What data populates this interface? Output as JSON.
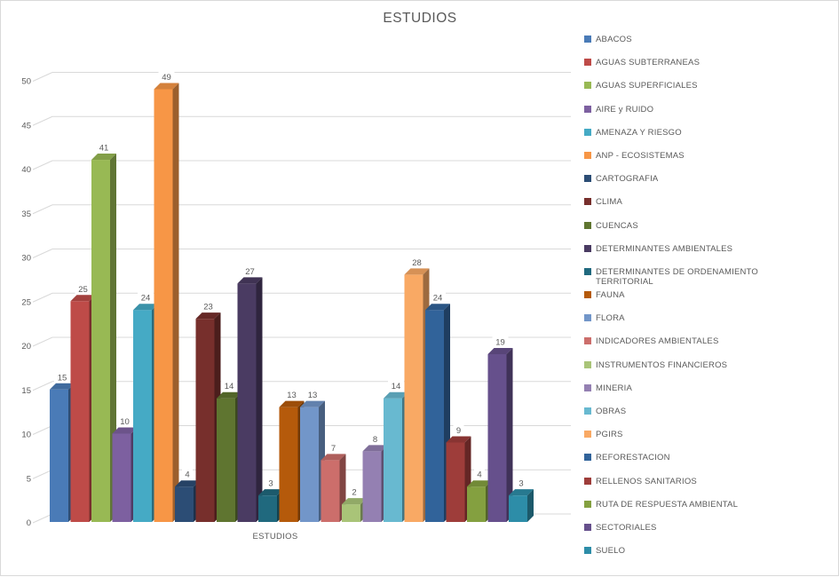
{
  "chart_data": {
    "type": "bar",
    "variant": "3d-clustered-column",
    "title": "ESTUDIOS",
    "xlabel": "ESTUDIOS",
    "ylabel": "",
    "ylim": [
      0,
      50
    ],
    "ytick_step": 5,
    "yticks": [
      0,
      5,
      10,
      15,
      20,
      25,
      30,
      35,
      40,
      45,
      50
    ],
    "grid": true,
    "data_labels": true,
    "legend_position": "right",
    "categories": [
      "ESTUDIOS"
    ],
    "series": [
      {
        "name": "ABACOS",
        "value": 15,
        "color": "#4A7BB7"
      },
      {
        "name": "AGUAS SUBTERRANEAS",
        "value": 25,
        "color": "#BE4B48"
      },
      {
        "name": "AGUAS SUPERFICIALES",
        "value": 41,
        "color": "#98B954"
      },
      {
        "name": "AIRE y RUIDO",
        "value": 10,
        "color": "#7D60A0"
      },
      {
        "name": "AMENAZA Y RIESGO",
        "value": 24,
        "color": "#45AAC5"
      },
      {
        "name": "ANP - ECOSISTEMAS",
        "value": 49,
        "color": "#F79646"
      },
      {
        "name": "CARTOGRAFIA",
        "value": 4,
        "color": "#2C4D75"
      },
      {
        "name": "CLIMA",
        "value": 23,
        "color": "#772F2C"
      },
      {
        "name": "CUENCAS",
        "value": 14,
        "color": "#5F7530"
      },
      {
        "name": "DETERMINANTES AMBIENTALES",
        "value": 27,
        "color": "#4A3B62"
      },
      {
        "name": "DETERMINANTES DE ORDENAMIENTO TERRITORIAL",
        "value": 3,
        "color": "#20697E"
      },
      {
        "name": "FAUNA",
        "value": 13,
        "color": "#B55A0B"
      },
      {
        "name": "FLORA",
        "value": 13,
        "color": "#7296C9"
      },
      {
        "name": "INDICADORES AMBIENTALES",
        "value": 7,
        "color": "#CC6E6B"
      },
      {
        "name": "INSTRUMENTOS FINANCIEROS",
        "value": 2,
        "color": "#A9C478"
      },
      {
        "name": "MINERIA",
        "value": 8,
        "color": "#9480B2"
      },
      {
        "name": "OBRAS",
        "value": 14,
        "color": "#68B9D0"
      },
      {
        "name": "PGIRS",
        "value": 28,
        "color": "#F9A964"
      },
      {
        "name": "REFORESTACION",
        "value": 24,
        "color": "#31639A"
      },
      {
        "name": "RELLENOS SANITARIOS",
        "value": 9,
        "color": "#9E3D3A"
      },
      {
        "name": "RUTA DE RESPUESTA AMBIENTAL",
        "value": 4,
        "color": "#84A040"
      },
      {
        "name": "SECTORIALES",
        "value": 19,
        "color": "#66508C"
      },
      {
        "name": "SUELO",
        "value": 3,
        "color": "#2D8DA8"
      }
    ]
  },
  "colors": {
    "gridline": "#D9D9D9",
    "text": "#595959",
    "border": "#D9D9D9",
    "data_label_bg": "#FFFFFF"
  }
}
